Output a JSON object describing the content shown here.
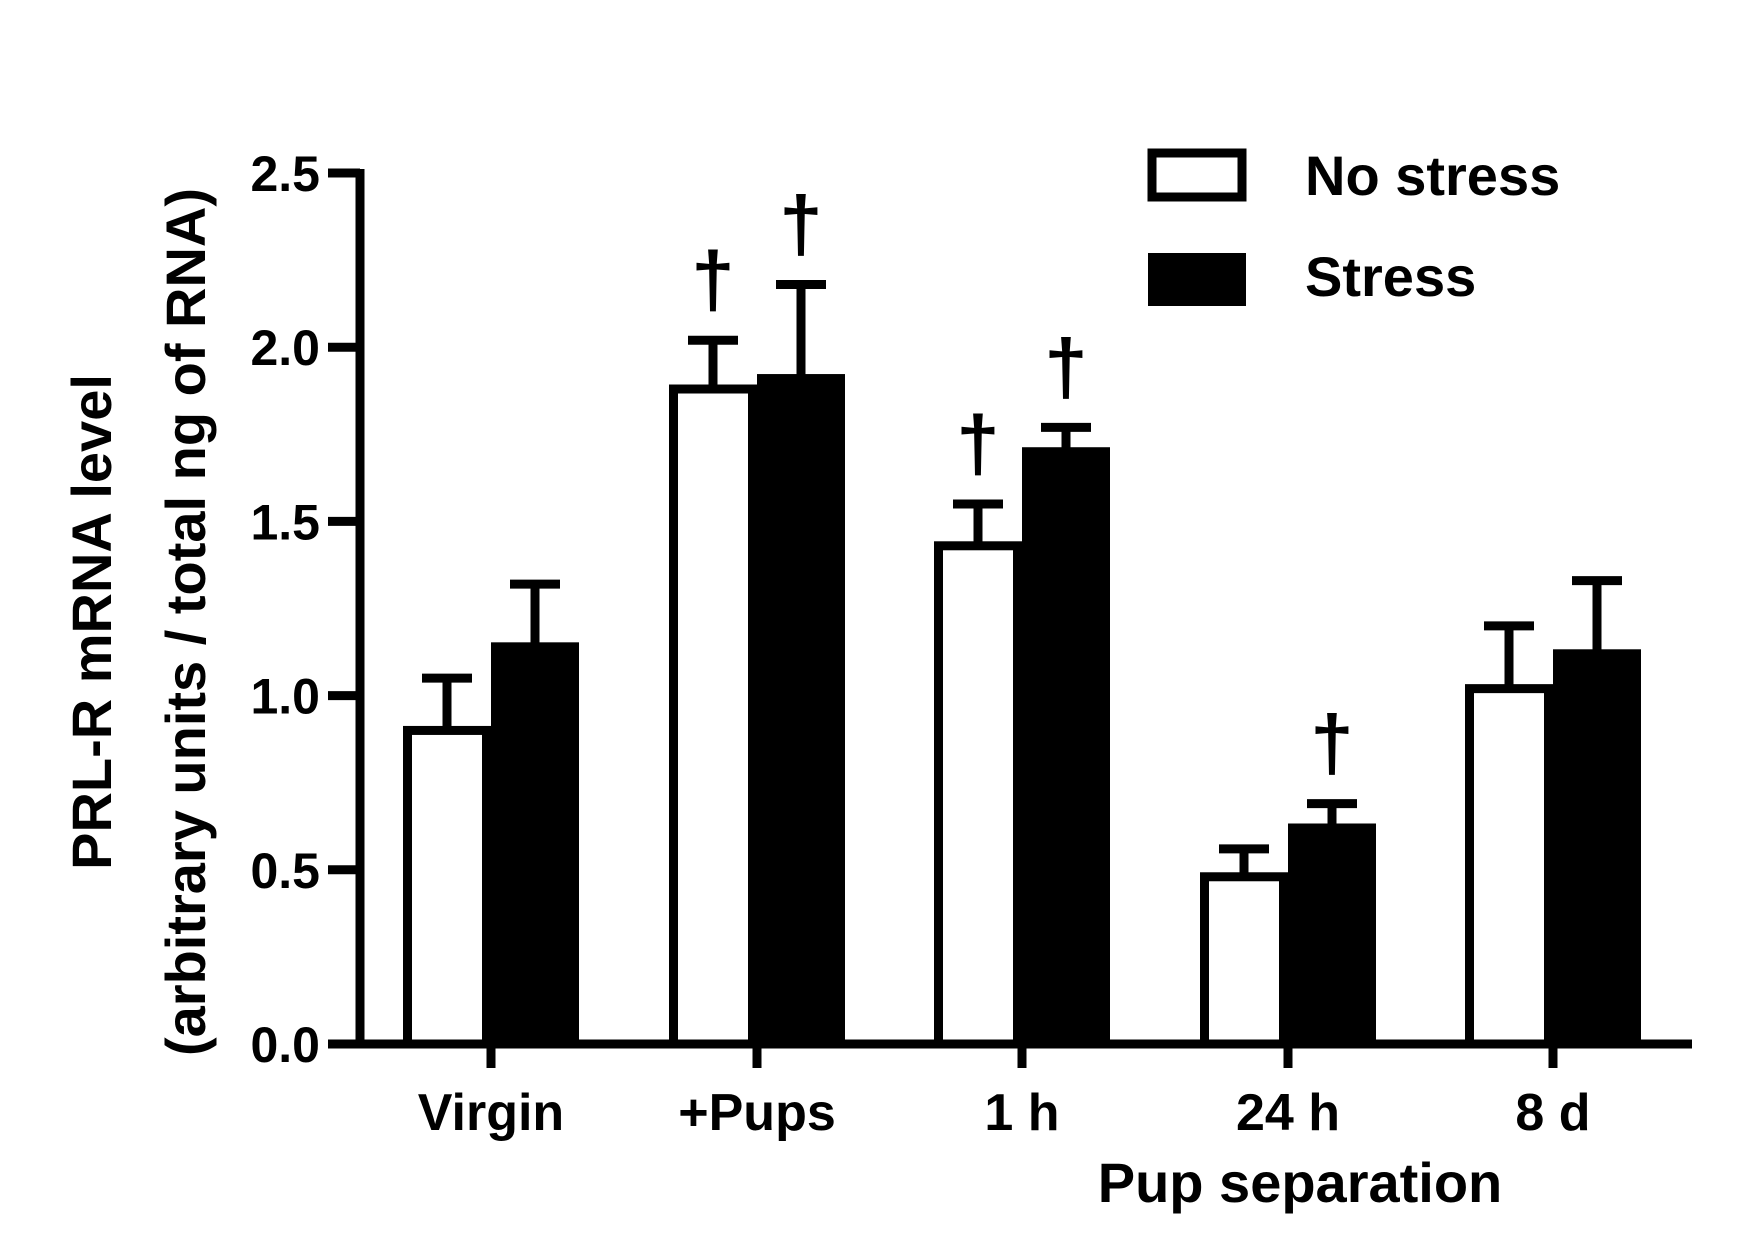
{
  "chart_data": {
    "type": "bar",
    "title": "",
    "ylabel_line1": "PRL-R mRNA level",
    "ylabel_line2": "(arbitrary units / total ng of RNA)",
    "xlabel": "Pup separation",
    "ylim": [
      0,
      2.5
    ],
    "yticks": [
      "0.0",
      "0.5",
      "1.0",
      "1.5",
      "2.0",
      "2.5"
    ],
    "ytick_values": [
      0,
      0.5,
      1.0,
      1.5,
      2.0,
      2.5
    ],
    "categories": [
      "Virgin",
      "+Pups",
      "1 h",
      "24 h",
      "8 d"
    ],
    "series": [
      {
        "name": "No stress",
        "fill": "#ffffff",
        "values": [
          0.9,
          1.88,
          1.43,
          0.48,
          1.02
        ],
        "errors": [
          0.15,
          0.14,
          0.12,
          0.08,
          0.18
        ],
        "significance": [
          "",
          "†",
          "†",
          "",
          ""
        ]
      },
      {
        "name": "Stress",
        "fill": "#000000",
        "values": [
          1.14,
          1.91,
          1.7,
          0.62,
          1.12
        ],
        "errors": [
          0.18,
          0.27,
          0.07,
          0.07,
          0.21
        ],
        "significance": [
          "",
          "†",
          "†",
          "†",
          ""
        ]
      }
    ],
    "legend": {
      "position": "top-right",
      "entries": [
        "No stress",
        "Stress"
      ]
    }
  }
}
